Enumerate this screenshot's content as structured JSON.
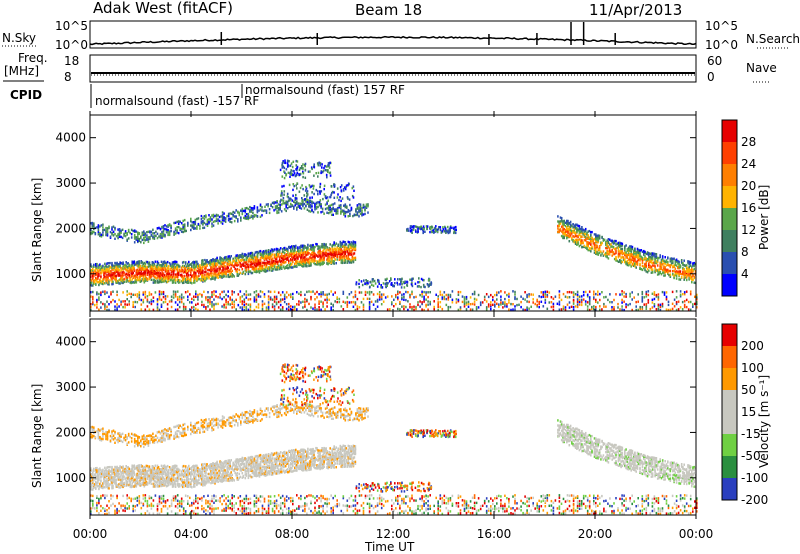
{
  "header": {
    "station": "Adak West (fitACF)",
    "beam": "Beam 18",
    "date": "11/Apr/2013"
  },
  "noise_panel": {
    "left_label": "N.Sky",
    "right_label": "N.Search",
    "left_ticks": [
      "10^5",
      "10^0"
    ],
    "right_ticks": [
      "10^5",
      "10^0"
    ]
  },
  "freq_panel": {
    "left_label_line1": "Freq.",
    "left_label_line2": "[MHz]",
    "left_ticks": [
      "18",
      "8"
    ],
    "right_label": "Nave",
    "right_ticks": [
      "60",
      "0"
    ]
  },
  "cpid_panel": {
    "label": "CPID",
    "entries": [
      {
        "text": "normalsound (fast) -157 RF",
        "start_hour": 0
      },
      {
        "text": "normalsound (fast) 157 RF",
        "start_hour": 6.0
      }
    ]
  },
  "colors": {
    "power_scale": [
      "#0000ff",
      "#2a4fb0",
      "#3f7f5f",
      "#5aa64a",
      "#ffb300",
      "#ff7f00",
      "#ff4000",
      "#e60000"
    ],
    "velocity_scale": [
      "#2a3fbf",
      "#2a8f3f",
      "#6fd043",
      "#c8c8c0",
      "#c8c8c0",
      "#ff9900",
      "#ff6600",
      "#e60000"
    ]
  },
  "chart_data": [
    {
      "type": "heatmap",
      "name": "power",
      "xlabel": "",
      "ylabel": "Slant Range [km]",
      "xlim": [
        0,
        24
      ],
      "ylim": [
        180,
        4500
      ],
      "y_ticks": [
        "1000",
        "2000",
        "3000",
        "4000"
      ],
      "colorbar": {
        "label": "Power [dB]",
        "ticks": [
          "4",
          "8",
          "12",
          "16",
          "20",
          "24",
          "28"
        ]
      },
      "features": [
        {
          "band": "main-echo",
          "hours": [
            0,
            2,
            4,
            6,
            8,
            10
          ],
          "range_km": [
            950,
            1020,
            1000,
            1180,
            1350,
            1450
          ]
        },
        {
          "band": "upper-echo",
          "hours": [
            0,
            2,
            4,
            6,
            8,
            10
          ],
          "range_km": [
            2000,
            1800,
            2100,
            2300,
            2550,
            2400
          ]
        },
        {
          "band": "late-echo",
          "hours": [
            18.5,
            20,
            22,
            24
          ],
          "range_km": [
            2000,
            1600,
            1200,
            950
          ]
        }
      ]
    },
    {
      "type": "heatmap",
      "name": "velocity",
      "xlabel": "Time UT",
      "ylabel": "Slant Range [km]",
      "x_ticks": [
        "00:00",
        "04:00",
        "08:00",
        "12:00",
        "16:00",
        "20:00",
        "00:00"
      ],
      "xlim": [
        0,
        24
      ],
      "ylim": [
        180,
        4500
      ],
      "y_ticks": [
        "1000",
        "2000",
        "3000",
        "4000"
      ],
      "colorbar": {
        "label": "Velocity [m s⁻¹]",
        "ticks": [
          "200",
          "100",
          "50",
          "15",
          "-15",
          "-50",
          "-100",
          "-200"
        ]
      }
    }
  ]
}
